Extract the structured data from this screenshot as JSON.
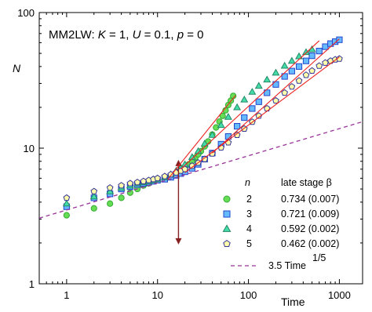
{
  "chart_data": {
    "type": "scatter",
    "title_parts": [
      {
        "text": "MM2LW: ",
        "italic": false
      },
      {
        "text": "K",
        "italic": true
      },
      {
        "text": " = 1, ",
        "italic": false
      },
      {
        "text": "U",
        "italic": true
      },
      {
        "text": " = 0.1, ",
        "italic": false
      },
      {
        "text": "p",
        "italic": true
      },
      {
        "text": " = 0",
        "italic": false
      }
    ],
    "xlabel": "Time",
    "ylabel": "N",
    "xscale": "log",
    "yscale": "log",
    "xlim": [
      0.5,
      1800
    ],
    "ylim": [
      1,
      100
    ],
    "x_ticks": [
      {
        "v": 1,
        "label": "1"
      },
      {
        "v": 10,
        "label": "10"
      },
      {
        "v": 100,
        "label": "100"
      },
      {
        "v": 1000,
        "label": "1000"
      }
    ],
    "y_ticks": [
      {
        "v": 1,
        "label": "1"
      },
      {
        "v": 10,
        "label": "10"
      },
      {
        "v": 100,
        "label": "100"
      }
    ],
    "legend_header": {
      "n": "n",
      "beta": "late stage β"
    },
    "series": [
      {
        "name": "2",
        "beta": "0.734 (0.007)",
        "marker": "circle",
        "fill": "#66dd55",
        "stroke": "#33aa33",
        "points": [
          [
            1,
            3.2
          ],
          [
            2,
            3.6
          ],
          [
            3,
            3.9
          ],
          [
            4,
            4.3
          ],
          [
            5,
            4.7
          ],
          [
            6,
            5.0
          ],
          [
            7,
            5.3
          ],
          [
            8,
            5.5
          ],
          [
            9,
            5.7
          ],
          [
            10,
            5.8
          ],
          [
            12,
            6.0
          ],
          [
            14,
            6.2
          ],
          [
            16,
            6.5
          ],
          [
            18,
            6.8
          ],
          [
            20,
            7.2
          ],
          [
            22,
            7.6
          ],
          [
            24,
            8.0
          ],
          [
            26,
            8.5
          ],
          [
            28,
            9.0
          ],
          [
            30,
            9.5
          ],
          [
            33,
            10.3
          ],
          [
            36,
            11.2
          ],
          [
            40,
            12.6
          ],
          [
            44,
            14.2
          ],
          [
            48,
            15.7
          ],
          [
            52,
            17.3
          ],
          [
            56,
            19.0
          ],
          [
            60,
            20.8
          ],
          [
            64,
            22.4
          ],
          [
            68,
            24.3
          ]
        ],
        "fit": {
          "x": [
            13,
            72
          ],
          "y": [
            5.9,
            24.5
          ],
          "color": "#ee2222"
        }
      },
      {
        "name": "3",
        "beta": "0.721 (0.009)",
        "marker": "square",
        "fill": "#66bbff",
        "stroke": "#2244cc",
        "points": [
          [
            1,
            3.7
          ],
          [
            2,
            4.3
          ],
          [
            3,
            4.6
          ],
          [
            4,
            5.0
          ],
          [
            5,
            5.2
          ],
          [
            6,
            5.4
          ],
          [
            7,
            5.5
          ],
          [
            8,
            5.6
          ],
          [
            9,
            5.7
          ],
          [
            10,
            5.8
          ],
          [
            12,
            5.9
          ],
          [
            14,
            6.1
          ],
          [
            16,
            6.3
          ],
          [
            18,
            6.5
          ],
          [
            20,
            6.7
          ],
          [
            24,
            7.1
          ],
          [
            28,
            7.6
          ],
          [
            33,
            8.3
          ],
          [
            40,
            9.2
          ],
          [
            50,
            10.7
          ],
          [
            60,
            12.2
          ],
          [
            75,
            14.5
          ],
          [
            90,
            16.8
          ],
          [
            110,
            19.6
          ],
          [
            130,
            22.0
          ],
          [
            160,
            25.6
          ],
          [
            200,
            29.5
          ],
          [
            250,
            33.8
          ],
          [
            300,
            37.0
          ],
          [
            360,
            40.0
          ],
          [
            430,
            44.0
          ],
          [
            500,
            48.0
          ],
          [
            600,
            52.0
          ],
          [
            700,
            56.0
          ],
          [
            800,
            59.0
          ],
          [
            900,
            61.0
          ],
          [
            1000,
            63.0
          ]
        ],
        "fit": {
          "x": [
            40,
            1000
          ],
          "y": [
            9.2,
            64
          ],
          "color": "#ee2222"
        }
      },
      {
        "name": "4",
        "beta": "0.592 (0.002)",
        "marker": "triangle",
        "fill": "#44ddaa",
        "stroke": "#228866",
        "points": [
          [
            1,
            3.9
          ],
          [
            2,
            4.4
          ],
          [
            3,
            4.8
          ],
          [
            4,
            5.1
          ],
          [
            5,
            5.3
          ],
          [
            6,
            5.5
          ],
          [
            7,
            5.6
          ],
          [
            8,
            5.7
          ],
          [
            9,
            5.8
          ],
          [
            10,
            5.9
          ],
          [
            12,
            6.1
          ],
          [
            14,
            6.4
          ],
          [
            16,
            6.8
          ],
          [
            18,
            7.2
          ],
          [
            20,
            7.6
          ],
          [
            24,
            8.6
          ],
          [
            28,
            9.5
          ],
          [
            33,
            10.8
          ],
          [
            40,
            12.5
          ],
          [
            50,
            14.8
          ],
          [
            60,
            17.0
          ],
          [
            75,
            20.0
          ],
          [
            90,
            22.8
          ],
          [
            110,
            26.0
          ],
          [
            130,
            28.8
          ],
          [
            160,
            32.0
          ],
          [
            200,
            36.0
          ],
          [
            250,
            40.5
          ],
          [
            300,
            44.0
          ],
          [
            360,
            47.5
          ],
          [
            430,
            51.0
          ],
          [
            500,
            53.5
          ]
        ],
        "fit": {
          "x": [
            18,
            600
          ],
          "y": [
            7.0,
            62
          ],
          "color": "#ee2222"
        }
      },
      {
        "name": "5",
        "beta": "0.462 (0.002)",
        "marker": "pentagon",
        "fill": "#ffffaa",
        "stroke": "#333399",
        "points": [
          [
            1,
            4.3
          ],
          [
            2,
            4.8
          ],
          [
            3,
            5.1
          ],
          [
            4,
            5.3
          ],
          [
            5,
            5.5
          ],
          [
            6,
            5.6
          ],
          [
            7,
            5.7
          ],
          [
            8,
            5.8
          ],
          [
            9,
            5.9
          ],
          [
            10,
            6.0
          ],
          [
            12,
            6.2
          ],
          [
            14,
            6.4
          ],
          [
            16,
            6.6
          ],
          [
            18,
            6.8
          ],
          [
            20,
            7.0
          ],
          [
            24,
            7.4
          ],
          [
            28,
            7.8
          ],
          [
            33,
            8.3
          ],
          [
            40,
            9.1
          ],
          [
            50,
            10.1
          ],
          [
            60,
            11.0
          ],
          [
            75,
            12.5
          ],
          [
            90,
            13.9
          ],
          [
            110,
            15.6
          ],
          [
            130,
            17.3
          ],
          [
            160,
            19.6
          ],
          [
            200,
            22.4
          ],
          [
            250,
            25.6
          ],
          [
            300,
            28.4
          ],
          [
            360,
            31.4
          ],
          [
            430,
            34.6
          ],
          [
            500,
            37.2
          ],
          [
            600,
            40.4
          ],
          [
            700,
            42.6
          ],
          [
            800,
            44.0
          ],
          [
            900,
            45.0
          ],
          [
            1000,
            45.6
          ]
        ],
        "fit": {
          "x": [
            20,
            1000
          ],
          "y": [
            6.6,
            47.0
          ],
          "color": "#ee2222"
        }
      }
    ],
    "reference_line": {
      "label_main": "3.5 Time",
      "label_exp": "1/5",
      "a": 3.5,
      "exponent": 0.2,
      "color": "#993399"
    },
    "arrow": {
      "x": 17,
      "y_from": 8.2,
      "y_to": 1.95,
      "color": "#882222"
    }
  }
}
